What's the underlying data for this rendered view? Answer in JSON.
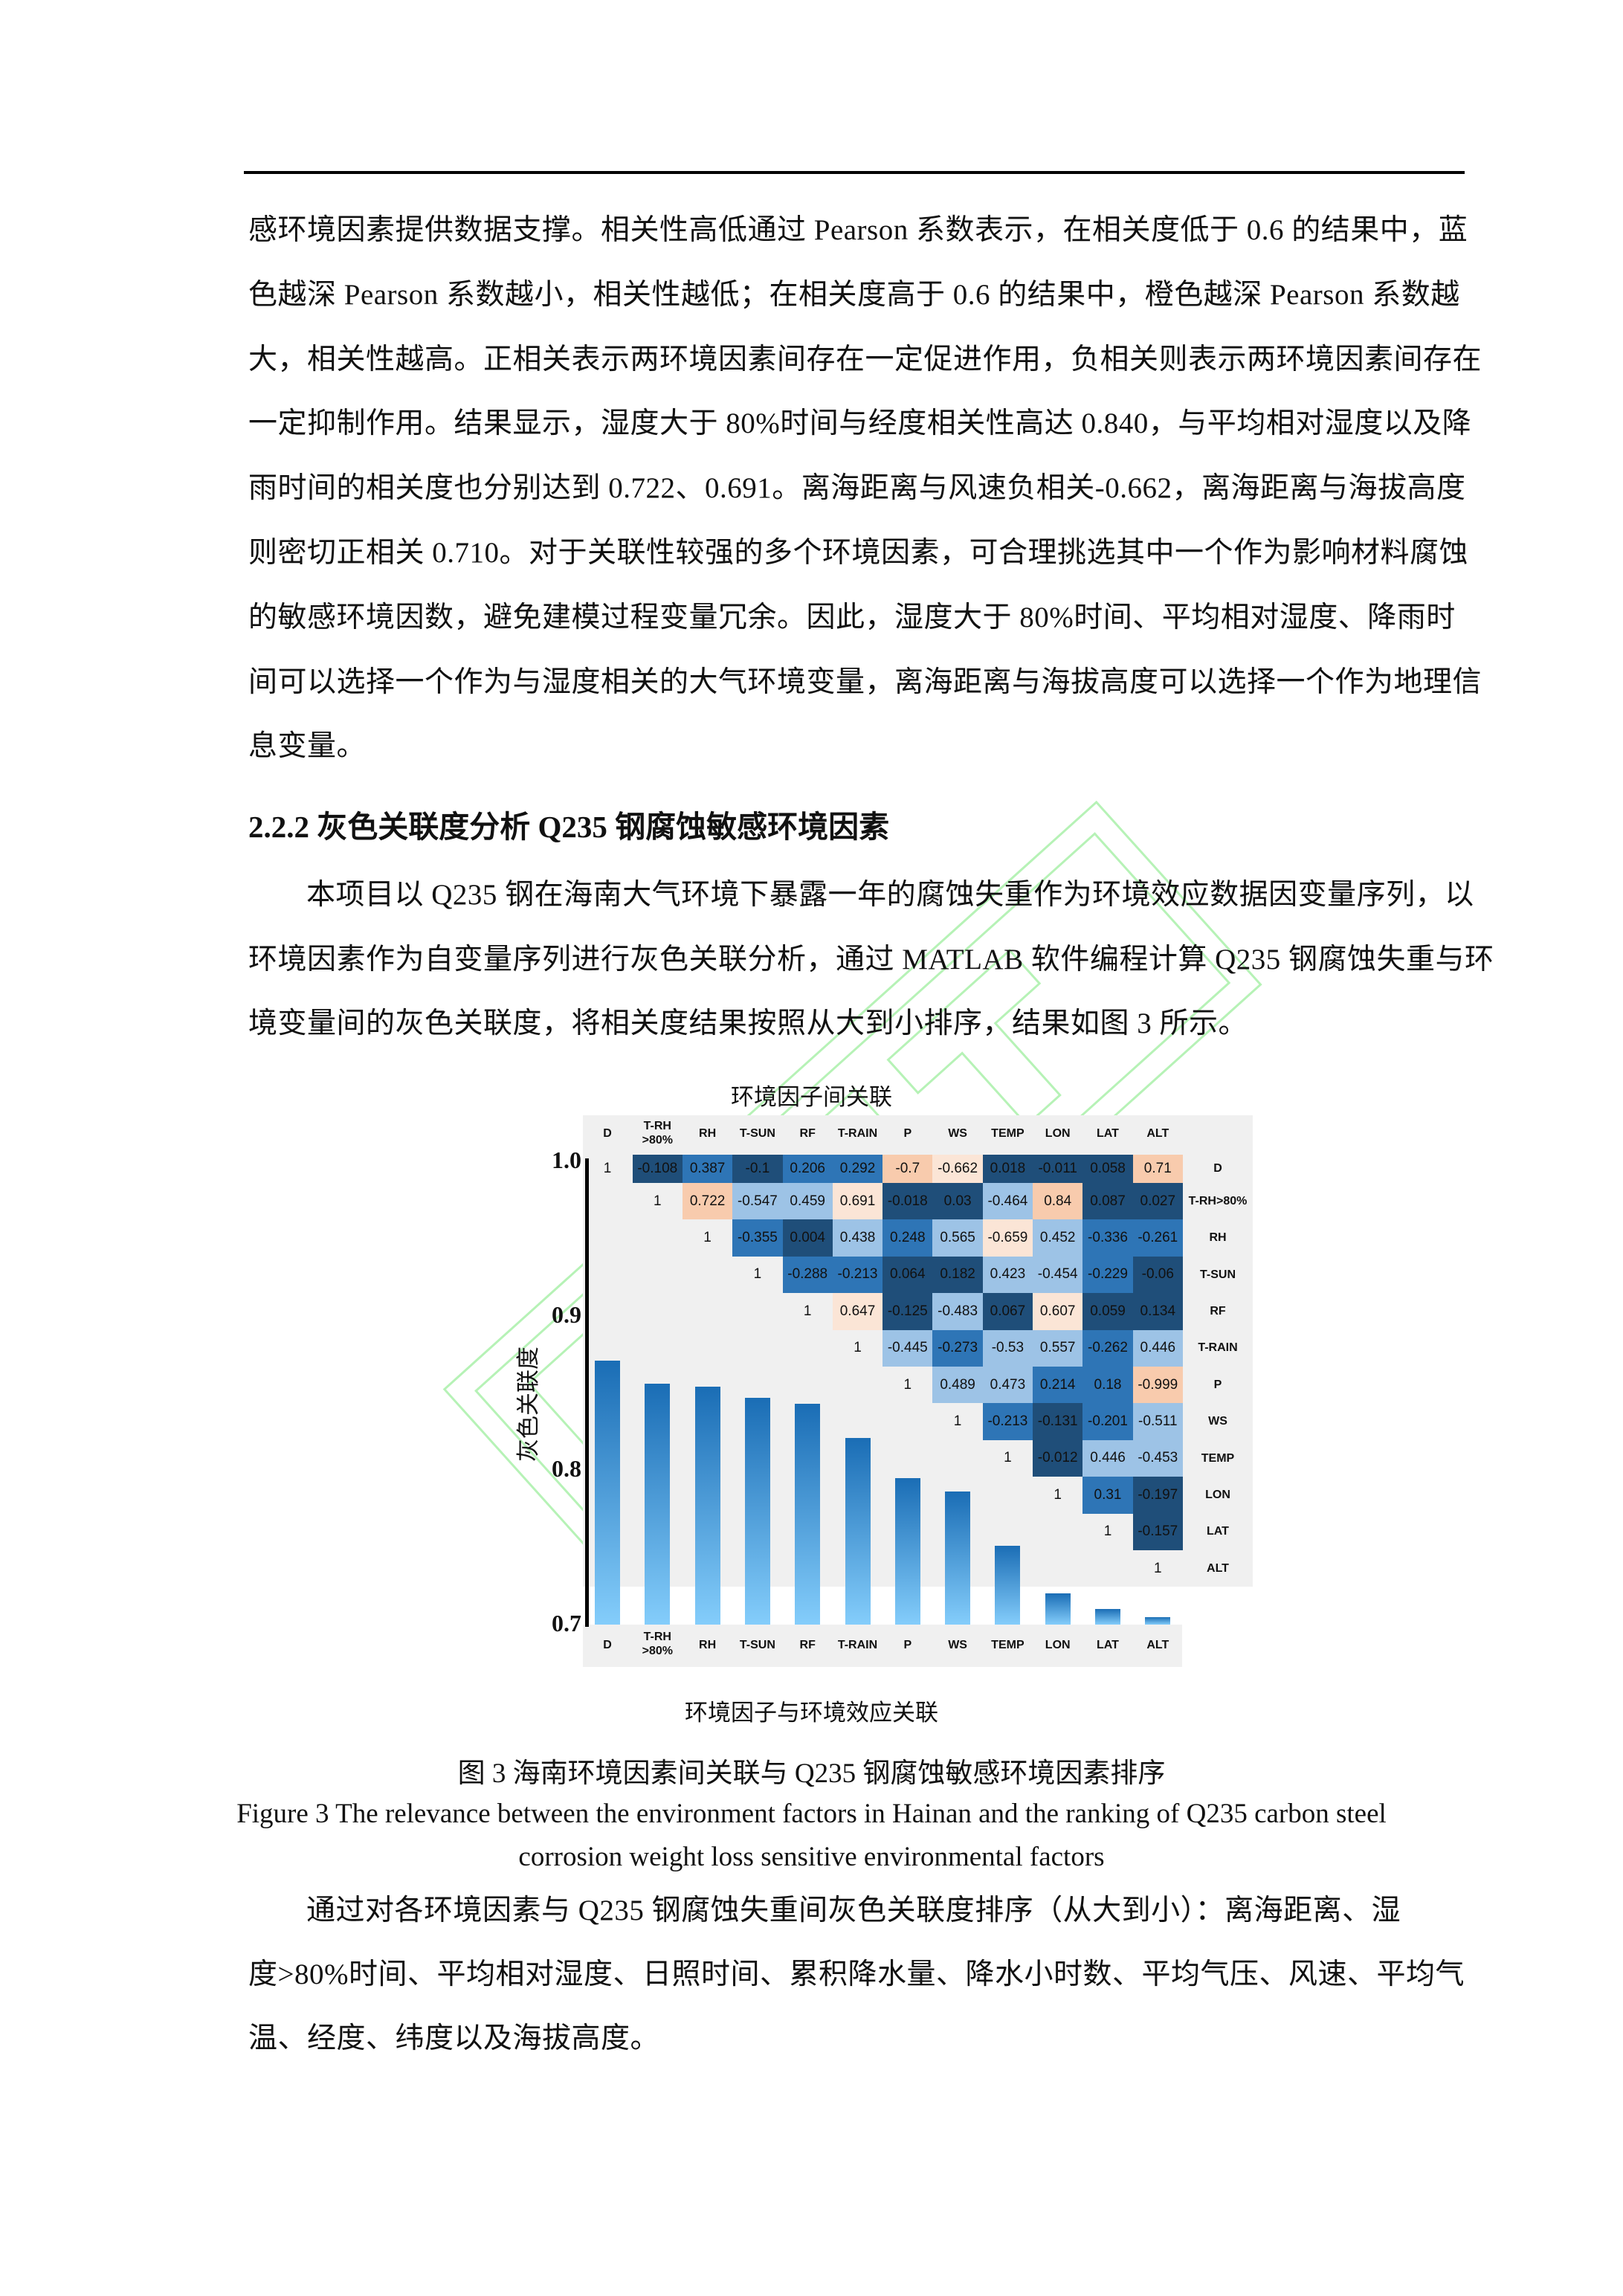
{
  "paragraph1": [
    "感环境因素提供数据支撑。相关性高低通过 Pearson 系数表示，在相关度低于 0.6 的结果中，蓝",
    "色越深 Pearson 系数越小，相关性越低；在相关度高于 0.6 的结果中，橙色越深 Pearson 系数越",
    "大，相关性越高。正相关表示两环境因素间存在一定促进作用，负相关则表示两环境因素间存在",
    "一定抑制作用。结果显示，湿度大于 80%时间与经度相关性高达 0.840，与平均相对湿度以及降",
    "雨时间的相关度也分别达到 0.722、0.691。离海距离与风速负相关-0.662，离海距离与海拔高度",
    "则密切正相关 0.710。对于关联性较强的多个环境因素，可合理挑选其中一个作为影响材料腐蚀",
    "的敏感环境因数，避免建模过程变量冗余。因此，湿度大于 80%时间、平均相对湿度、降雨时",
    "间可以选择一个作为与湿度相关的大气环境变量，离海距离与海拔高度可以选择一个作为地理信",
    "息变量。"
  ],
  "section_heading": "2.2.2 灰色关联度分析 Q235 钢腐蚀敏感环境因素",
  "paragraph2": [
    "本项目以 Q235 钢在海南大气环境下暴露一年的腐蚀失重作为环境效应数据因变量序列，以",
    "环境因素作为自变量序列进行灰色关联分析，通过 MATLAB 软件编程计算 Q235 钢腐蚀失重与环",
    "境变量间的灰色关联度，将相关度结果按照从大到小排序，结果如图 3 所示。"
  ],
  "chart_data": [
    {
      "type": "heatmap",
      "title": "环境因子间关联",
      "col_labels": [
        "D",
        "T-RH\n>80%",
        "RH",
        "T-SUN",
        "RF",
        "T-RAIN",
        "P",
        "WS",
        "TEMP",
        "LON",
        "LAT",
        "ALT"
      ],
      "row_labels": [
        "D",
        "T-RH>80%",
        "RH",
        "T-SUN",
        "RF",
        "T-RAIN",
        "P",
        "WS",
        "TEMP",
        "LON",
        "LAT",
        "ALT"
      ],
      "upper_triangle_values": [
        [
          "1",
          "-0.108",
          "0.387",
          "-0.1",
          "0.206",
          "0.292",
          "-0.7",
          "-0.662",
          "0.018",
          "-0.011",
          "0.058",
          "0.71"
        ],
        [
          "1",
          "0.722",
          "-0.547",
          "0.459",
          "0.691",
          "-0.018",
          "0.03",
          "-0.464",
          "0.84",
          "0.087",
          "0.027"
        ],
        [
          "1",
          "-0.355",
          "0.004",
          "0.438",
          "0.248",
          "0.565",
          "-0.659",
          "0.452",
          "-0.336",
          "-0.261"
        ],
        [
          "1",
          "-0.288",
          "-0.213",
          "0.064",
          "0.182",
          "0.423",
          "-0.454",
          "-0.229",
          "-0.06"
        ],
        [
          "1",
          "0.647",
          "-0.125",
          "-0.483",
          "0.067",
          "0.607",
          "0.059",
          "0.134"
        ],
        [
          "1",
          "-0.445",
          "-0.273",
          "-0.53",
          "0.557",
          "-0.262",
          "0.446"
        ],
        [
          "1",
          "0.489",
          "0.473",
          "0.214",
          "0.18",
          "-0.999"
        ],
        [
          "1",
          "-0.213",
          "-0.131",
          "-0.201",
          "-0.511"
        ],
        [
          "1",
          "-0.012",
          "0.446",
          "-0.453"
        ],
        [
          "1",
          "0.31",
          "-0.197"
        ],
        [
          "1",
          "-0.157"
        ],
        [
          "1"
        ]
      ],
      "color_levels": [
        [
          null,
          0,
          1,
          0,
          1,
          1,
          4,
          3,
          0,
          0,
          0,
          4
        ],
        [
          null,
          4,
          2,
          2,
          3,
          0,
          0,
          2,
          4,
          0,
          0
        ],
        [
          null,
          1,
          0,
          2,
          1,
          2,
          3,
          2,
          1,
          1
        ],
        [
          null,
          1,
          1,
          0,
          0,
          2,
          2,
          1,
          0
        ],
        [
          null,
          3,
          0,
          2,
          0,
          3,
          0,
          0
        ],
        [
          null,
          2,
          1,
          2,
          2,
          1,
          2
        ],
        [
          null,
          2,
          2,
          1,
          1,
          4
        ],
        [
          null,
          1,
          0,
          1,
          2
        ],
        [
          null,
          0,
          2,
          2
        ],
        [
          null,
          1,
          0
        ],
        [
          null,
          0
        ],
        [
          null
        ]
      ],
      "level_colors": [
        "#1f4e79",
        "#2e75b6",
        "#9dc3e6",
        "#fbe5d6",
        "#f8cbad"
      ]
    },
    {
      "type": "bar",
      "xlabel": "环境因子与环境效应关联",
      "ylabel": "灰色关联度",
      "categories": [
        "D",
        "T-RH\n>80%",
        "RH",
        "T-SUN",
        "RF",
        "T-RAIN",
        "P",
        "WS",
        "TEMP",
        "LON",
        "LAT",
        "ALT"
      ],
      "values": [
        0.871,
        0.856,
        0.854,
        0.847,
        0.843,
        0.821,
        0.795,
        0.786,
        0.751,
        0.72,
        0.71,
        0.705
      ],
      "ylim": [
        0.7,
        1.0
      ],
      "yticks": [
        "1.0",
        "0.9",
        "0.8",
        "0.7"
      ],
      "bar_gradient": [
        "#1a6db5",
        "#84cdfb"
      ]
    }
  ],
  "caption_cn": "图 3  海南环境因素间关联与 Q235 钢腐蚀敏感环境因素排序",
  "caption_en": [
    "Figure 3 The relevance between the environment factors in Hainan and the ranking of Q235 carbon steel",
    "corrosion weight loss sensitive environmental factors"
  ],
  "paragraph3": [
    "通过对各环境因素与 Q235 钢腐蚀失重间灰色关联度排序（从大到小）：离海距离、湿",
    "度>80%时间、平均相对湿度、日照时间、累积降水量、降水小时数、平均气压、风速、平均气",
    "温、经度、纬度以及海拔高度。"
  ],
  "watermark_color": "#7be87b"
}
